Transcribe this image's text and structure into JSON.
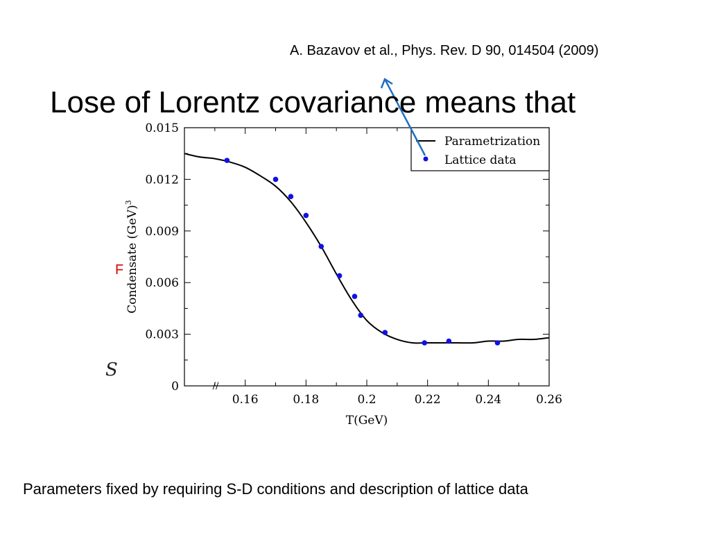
{
  "slide": {
    "citation": "A. Bazavov et al., Phys. Rev. D 90, 014504 (2009)",
    "title": "Lose of Lorentz covariance means that",
    "red_fragment": "F",
    "s_fragment": "S",
    "caption": "Parameters fixed by requiring S-D conditions and description of lattice data"
  },
  "colors": {
    "marker": "#1010e6",
    "curve": "#000000",
    "arrow": "#1f6fc0",
    "red_text": "#e00000"
  },
  "chart_data": {
    "type": "scatter",
    "title": "",
    "xlabel": "T(GeV)",
    "ylabel_base": "Condensate (GeV)",
    "ylabel_exponent": "3",
    "xlim": [
      0.14,
      0.26
    ],
    "ylim": [
      0,
      0.015
    ],
    "x_ticks": [
      0.16,
      0.18,
      0.2,
      0.22,
      0.24,
      0.26
    ],
    "x_tick_labels": [
      "0.16",
      "0.18",
      "0.2",
      "0.22",
      "0.24",
      "0.26"
    ],
    "y_ticks": [
      0,
      0.003,
      0.006,
      0.009,
      0.012,
      0.015
    ],
    "y_tick_labels": [
      "0",
      "0.003",
      "0.006",
      "0.009",
      "0.012",
      "0.015"
    ],
    "axis_break_mark": "//",
    "legend_position": "top-right",
    "series": [
      {
        "name": "Parametrization",
        "kind": "line",
        "x": [
          0.14,
          0.145,
          0.15,
          0.155,
          0.16,
          0.165,
          0.17,
          0.175,
          0.18,
          0.185,
          0.19,
          0.195,
          0.2,
          0.205,
          0.21,
          0.215,
          0.22,
          0.225,
          0.23,
          0.235,
          0.24,
          0.245,
          0.25,
          0.255,
          0.26
        ],
        "y": [
          0.0135,
          0.0133,
          0.0132,
          0.013,
          0.0127,
          0.0122,
          0.0116,
          0.0107,
          0.0095,
          0.0081,
          0.0065,
          0.005,
          0.0038,
          0.0031,
          0.0027,
          0.0025,
          0.0025,
          0.0025,
          0.0025,
          0.0025,
          0.0026,
          0.0026,
          0.0027,
          0.0027,
          0.0028
        ]
      },
      {
        "name": "Lattice data",
        "kind": "scatter",
        "x": [
          0.154,
          0.17,
          0.175,
          0.18,
          0.185,
          0.191,
          0.196,
          0.198,
          0.206,
          0.219,
          0.227,
          0.243
        ],
        "y": [
          0.0131,
          0.012,
          0.011,
          0.0099,
          0.0081,
          0.0064,
          0.0052,
          0.0041,
          0.0031,
          0.0025,
          0.0026,
          0.0025
        ]
      }
    ]
  }
}
